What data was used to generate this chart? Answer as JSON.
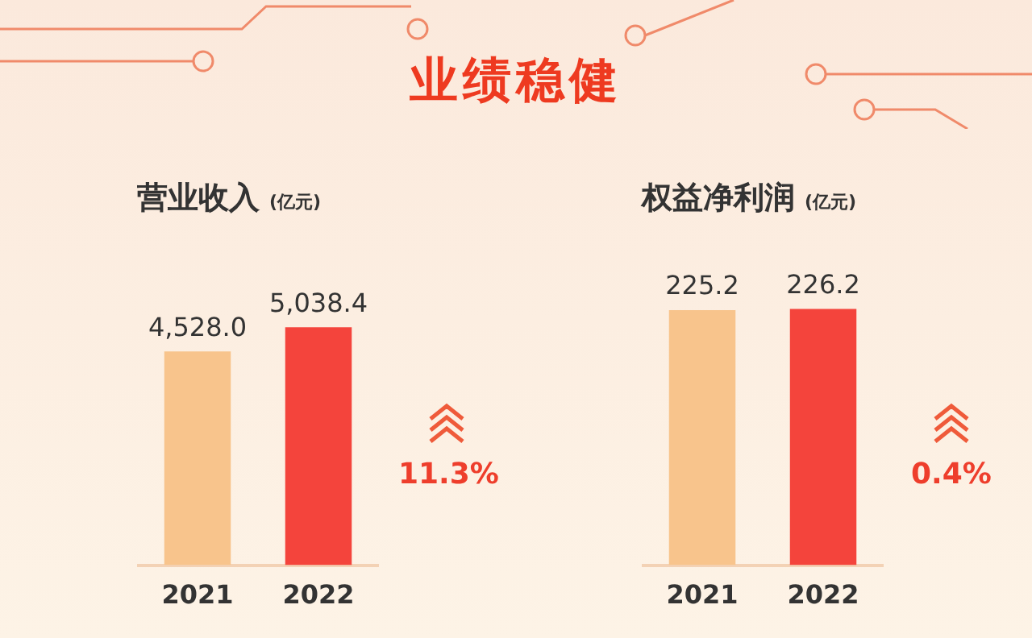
{
  "chart_data": [
    {
      "type": "other",
      "title": "业绩稳健"
    },
    {
      "type": "bar",
      "title": "营业收入",
      "subtitle": "(亿元)",
      "categories": [
        "2021",
        "2022"
      ],
      "values": [
        4528.0,
        5038.4
      ],
      "colors": [
        "#f8c48c",
        "#f4443c"
      ],
      "value_labels": [
        "4,528.0",
        "5,038.4"
      ],
      "tick_labels": "x",
      "annotations": [
        "11.3%"
      ]
    },
    {
      "type": "bar",
      "title": "权益净利润",
      "subtitle": "(亿元)",
      "categories": [
        "2021",
        "2022"
      ],
      "values": [
        225.2,
        226.2
      ],
      "colors": [
        "#f8c48c",
        "#f4443c"
      ],
      "value_labels": [
        "225.2",
        "226.2"
      ],
      "tick_labels": "x",
      "annotations": [
        "0.4%"
      ]
    }
  ]
}
